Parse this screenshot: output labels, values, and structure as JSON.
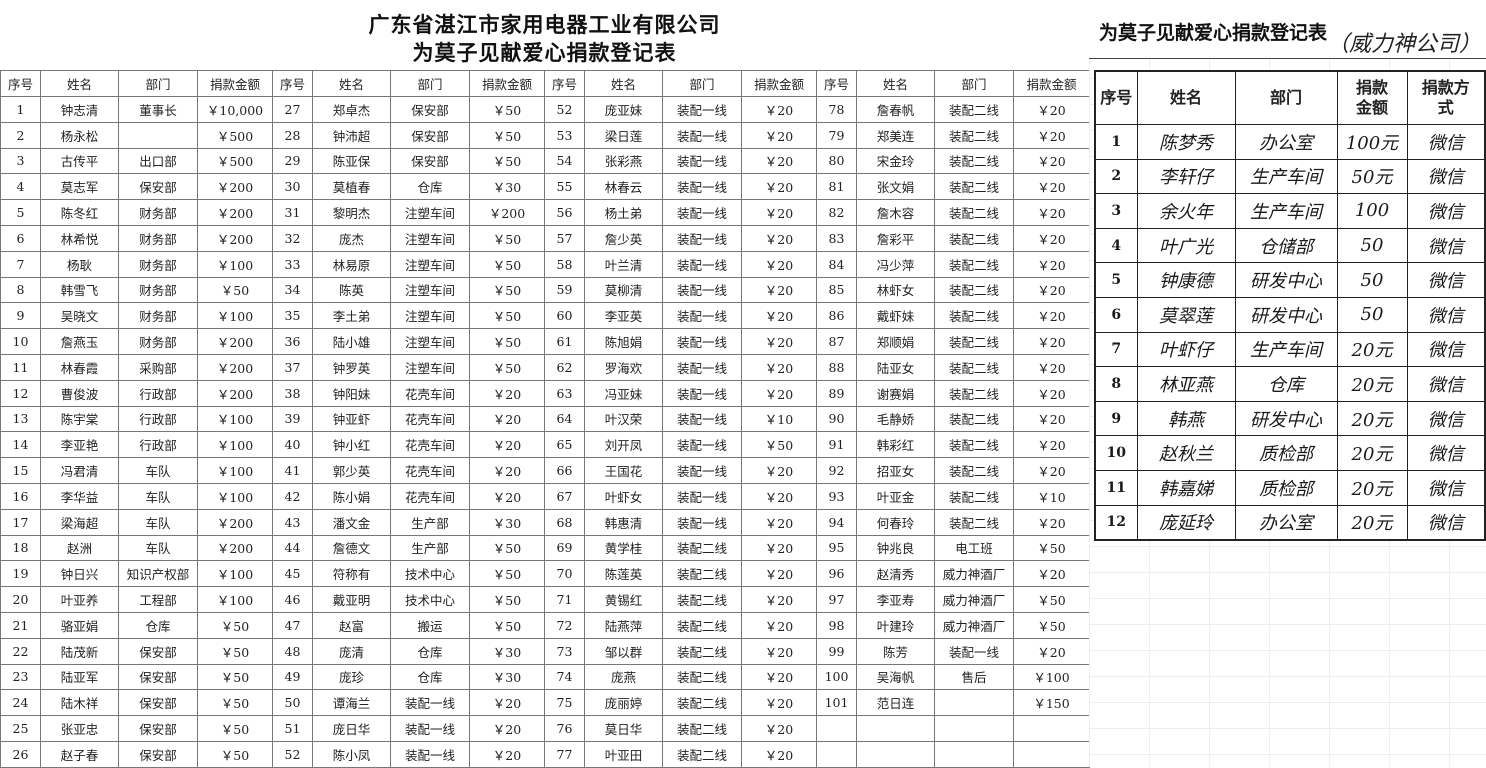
{
  "left": {
    "title_line1": "广东省湛江市家用电器工业有限公司",
    "title_line2": "为莫子见献爱心捐款登记表",
    "headers": [
      "序号",
      "姓名",
      "部门",
      "捐款金额"
    ],
    "groups": [
      [
        [
          "1",
          "钟志清",
          "董事长",
          "￥10,000"
        ],
        [
          "2",
          "杨永松",
          "",
          "￥500"
        ],
        [
          "3",
          "古传平",
          "出口部",
          "￥500"
        ],
        [
          "4",
          "莫志军",
          "保安部",
          "￥200"
        ],
        [
          "5",
          "陈冬红",
          "财务部",
          "￥200"
        ],
        [
          "6",
          "林希悦",
          "财务部",
          "￥200"
        ],
        [
          "7",
          "杨耿",
          "财务部",
          "￥100"
        ],
        [
          "8",
          "韩雪飞",
          "财务部",
          "￥50"
        ],
        [
          "9",
          "吴晓文",
          "财务部",
          "￥100"
        ],
        [
          "10",
          "詹燕玉",
          "财务部",
          "￥200"
        ],
        [
          "11",
          "林春霞",
          "采购部",
          "￥200"
        ],
        [
          "12",
          "曹俊波",
          "行政部",
          "￥200"
        ],
        [
          "13",
          "陈宇棠",
          "行政部",
          "￥100"
        ],
        [
          "14",
          "李亚艳",
          "行政部",
          "￥100"
        ],
        [
          "15",
          "冯君清",
          "车队",
          "￥100"
        ],
        [
          "16",
          "李华益",
          "车队",
          "￥100"
        ],
        [
          "17",
          "梁海超",
          "车队",
          "￥200"
        ],
        [
          "18",
          "赵洲",
          "车队",
          "￥200"
        ],
        [
          "19",
          "钟日兴",
          "知识产权部",
          "￥100"
        ],
        [
          "20",
          "叶亚养",
          "工程部",
          "￥100"
        ],
        [
          "21",
          "骆亚娟",
          "仓库",
          "￥50"
        ],
        [
          "22",
          "陆茂新",
          "保安部",
          "￥50"
        ],
        [
          "23",
          "陆亚军",
          "保安部",
          "￥50"
        ],
        [
          "24",
          "陆木祥",
          "保安部",
          "￥50"
        ],
        [
          "25",
          "张亚忠",
          "保安部",
          "￥50"
        ],
        [
          "26",
          "赵子春",
          "保安部",
          "￥50"
        ]
      ],
      [
        [
          "27",
          "郑卓杰",
          "保安部",
          "￥50"
        ],
        [
          "28",
          "钟沛超",
          "保安部",
          "￥50"
        ],
        [
          "29",
          "陈亚保",
          "保安部",
          "￥50"
        ],
        [
          "30",
          "莫植春",
          "仓库",
          "￥30"
        ],
        [
          "31",
          "黎明杰",
          "注塑车间",
          "￥200"
        ],
        [
          "32",
          "庞杰",
          "注塑车间",
          "￥50"
        ],
        [
          "33",
          "林易原",
          "注塑车间",
          "￥50"
        ],
        [
          "34",
          "陈英",
          "注塑车间",
          "￥50"
        ],
        [
          "35",
          "李土弟",
          "注塑车间",
          "￥50"
        ],
        [
          "36",
          "陆小雄",
          "注塑车间",
          "￥50"
        ],
        [
          "37",
          "钟罗英",
          "注塑车间",
          "￥50"
        ],
        [
          "38",
          "钟阳妹",
          "花壳车间",
          "￥20"
        ],
        [
          "39",
          "钟亚虾",
          "花壳车间",
          "￥20"
        ],
        [
          "40",
          "钟小红",
          "花壳车间",
          "￥20"
        ],
        [
          "41",
          "郭少英",
          "花壳车间",
          "￥20"
        ],
        [
          "42",
          "陈小娟",
          "花壳车间",
          "￥20"
        ],
        [
          "43",
          "潘文金",
          "生产部",
          "￥30"
        ],
        [
          "44",
          "詹德文",
          "生产部",
          "￥50"
        ],
        [
          "45",
          "符称有",
          "技术中心",
          "￥50"
        ],
        [
          "46",
          "戴亚明",
          "技术中心",
          "￥50"
        ],
        [
          "47",
          "赵富",
          "搬运",
          "￥50"
        ],
        [
          "48",
          "庞清",
          "仓库",
          "￥30"
        ],
        [
          "49",
          "庞珍",
          "仓库",
          "￥30"
        ],
        [
          "50",
          "谭海兰",
          "装配一线",
          "￥20"
        ],
        [
          "51",
          "庞日华",
          "装配一线",
          "￥20"
        ],
        [
          "52",
          "陈小凤",
          "装配一线",
          "￥20"
        ]
      ],
      [
        [
          "52",
          "庞亚妹",
          "装配一线",
          "￥20"
        ],
        [
          "53",
          "梁日莲",
          "装配一线",
          "￥20"
        ],
        [
          "54",
          "张彩燕",
          "装配一线",
          "￥20"
        ],
        [
          "55",
          "林春云",
          "装配一线",
          "￥20"
        ],
        [
          "56",
          "杨土弟",
          "装配一线",
          "￥20"
        ],
        [
          "57",
          "詹少英",
          "装配一线",
          "￥20"
        ],
        [
          "58",
          "叶兰清",
          "装配一线",
          "￥20"
        ],
        [
          "59",
          "莫柳清",
          "装配一线",
          "￥20"
        ],
        [
          "60",
          "李亚英",
          "装配一线",
          "￥20"
        ],
        [
          "61",
          "陈旭娟",
          "装配一线",
          "￥20"
        ],
        [
          "62",
          "罗海欢",
          "装配一线",
          "￥20"
        ],
        [
          "63",
          "冯亚妹",
          "装配一线",
          "￥20"
        ],
        [
          "64",
          "叶汉荣",
          "装配一线",
          "￥10"
        ],
        [
          "65",
          "刘开凤",
          "装配一线",
          "￥50"
        ],
        [
          "66",
          "王国花",
          "装配一线",
          "￥20"
        ],
        [
          "67",
          "叶虾女",
          "装配一线",
          "￥20"
        ],
        [
          "68",
          "韩惠清",
          "装配一线",
          "￥20"
        ],
        [
          "69",
          "黄学桂",
          "装配二线",
          "￥20"
        ],
        [
          "70",
          "陈莲英",
          "装配二线",
          "￥20"
        ],
        [
          "71",
          "黄锡红",
          "装配二线",
          "￥20"
        ],
        [
          "72",
          "陆燕萍",
          "装配二线",
          "￥20"
        ],
        [
          "73",
          "邹以群",
          "装配二线",
          "￥20"
        ],
        [
          "74",
          "庞燕",
          "装配二线",
          "￥20"
        ],
        [
          "75",
          "庞丽婷",
          "装配二线",
          "￥20"
        ],
        [
          "76",
          "莫日华",
          "装配二线",
          "￥20"
        ],
        [
          "77",
          "叶亚田",
          "装配二线",
          "￥20"
        ]
      ],
      [
        [
          "78",
          "詹春帆",
          "装配二线",
          "￥20"
        ],
        [
          "79",
          "郑美连",
          "装配二线",
          "￥20"
        ],
        [
          "80",
          "宋金玲",
          "装配二线",
          "￥20"
        ],
        [
          "81",
          "张文娟",
          "装配二线",
          "￥20"
        ],
        [
          "82",
          "詹木容",
          "装配二线",
          "￥20"
        ],
        [
          "83",
          "詹彩平",
          "装配二线",
          "￥20"
        ],
        [
          "84",
          "冯少萍",
          "装配二线",
          "￥20"
        ],
        [
          "85",
          "林虾女",
          "装配二线",
          "￥20"
        ],
        [
          "86",
          "戴虾妹",
          "装配二线",
          "￥20"
        ],
        [
          "87",
          "郑顺娟",
          "装配二线",
          "￥20"
        ],
        [
          "88",
          "陆亚女",
          "装配二线",
          "￥20"
        ],
        [
          "89",
          "谢赛娟",
          "装配二线",
          "￥20"
        ],
        [
          "90",
          "毛静娇",
          "装配二线",
          "￥20"
        ],
        [
          "91",
          "韩彩红",
          "装配二线",
          "￥20"
        ],
        [
          "92",
          "招亚女",
          "装配二线",
          "￥20"
        ],
        [
          "93",
          "叶亚金",
          "装配二线",
          "￥10"
        ],
        [
          "94",
          "何春玲",
          "装配二线",
          "￥20"
        ],
        [
          "95",
          "钟兆良",
          "电工班",
          "￥50"
        ],
        [
          "96",
          "赵清秀",
          "威力神酒厂",
          "￥20"
        ],
        [
          "97",
          "李亚寿",
          "威力神酒厂",
          "￥50"
        ],
        [
          "98",
          "叶建玲",
          "威力神酒厂",
          "￥50"
        ],
        [
          "99",
          "陈芳",
          "装配一线",
          "￥20"
        ],
        [
          "100",
          "吴海帆",
          "售后",
          "￥100"
        ],
        [
          "101",
          "范日连",
          "",
          "￥150"
        ],
        [
          "",
          "",
          "",
          ""
        ],
        [
          "",
          "",
          "",
          ""
        ]
      ]
    ]
  },
  "right": {
    "title": "为莫子见献爱心捐款登记表",
    "company": "（威力神公司）",
    "headers": [
      "序号",
      "姓名",
      "部门",
      "捐款金额",
      "捐款方式"
    ],
    "rows": [
      [
        "1",
        "陈梦秀",
        "办公室",
        "100元",
        "微信"
      ],
      [
        "2",
        "李轩仔",
        "生产车间",
        "50元",
        "微信"
      ],
      [
        "3",
        "余火年",
        "生产车间",
        "100",
        "微信"
      ],
      [
        "4",
        "叶广光",
        "仓储部",
        "50",
        "微信"
      ],
      [
        "5",
        "钟康德",
        "研发中心",
        "50",
        "微信"
      ],
      [
        "6",
        "莫翠莲",
        "研发中心",
        "50",
        "微信"
      ],
      [
        "7",
        "叶虾仔",
        "生产车间",
        "20元",
        "微信"
      ],
      [
        "8",
        "林亚燕",
        "仓库",
        "20元",
        "微信"
      ],
      [
        "9",
        "韩燕",
        "研发中心",
        "20元",
        "微信"
      ],
      [
        "10",
        "赵秋兰",
        "质检部",
        "20元",
        "微信"
      ],
      [
        "11",
        "韩嘉娣",
        "质检部",
        "20元",
        "微信"
      ],
      [
        "12",
        "庞延玲",
        "办公室",
        "20元",
        "微信"
      ]
    ]
  }
}
